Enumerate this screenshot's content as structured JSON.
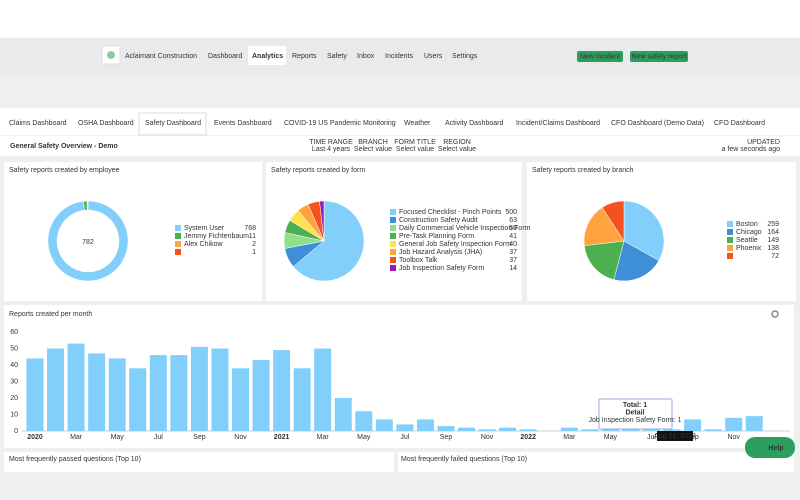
{
  "header": {
    "company": "Aclaimant Construction",
    "nav": [
      "Dashboard",
      "Analytics",
      "Reports",
      "Safety",
      "Inbox",
      "Incidents",
      "Users",
      "Settings"
    ],
    "active_nav": 1,
    "buttons": [
      "New incident",
      "New safety report"
    ]
  },
  "tabs": [
    "Claims Dashboard",
    "OSHA Dashboard",
    "Safety Dashboard",
    "Events Dashboard",
    "COVID-19 US Pandemic Monitoring",
    "Weather",
    "Activity Dashboard",
    "Incident/Claims Dashboard",
    "CFO Dashboard (Demo Data)",
    "CFO Dashboard"
  ],
  "active_tab": 2,
  "page_title": "General Safety Overview - Demo",
  "filters": [
    {
      "label": "TIME RANGE",
      "value": "Last 4 years"
    },
    {
      "label": "BRANCH",
      "value": "Select value"
    },
    {
      "label": "FORM TITLE",
      "value": "Select value"
    },
    {
      "label": "REGION",
      "value": "Select value"
    }
  ],
  "updated": {
    "label": "UPDATED",
    "value": "a few seconds ago"
  },
  "chart_data": [
    {
      "type": "donut",
      "title": "Safety reports created by employee",
      "total": 782,
      "categories": [
        "System User",
        "Jemmy Fichtenbaum",
        "Alex Chikow",
        null
      ],
      "values": [
        768,
        11,
        2,
        1
      ],
      "colors": [
        "#81cffa",
        "#4caf50",
        "#ffa23f",
        "#f4511e"
      ]
    },
    {
      "type": "pie",
      "title": "Safety reports created by form",
      "categories": [
        "Focused Checklist - Pinch Points",
        "Construction Safety Audit",
        "Daily Commercial Vehicle Inspection Form",
        "Pre-Task Planning Form",
        "General Job Safety Inspection Form",
        "Job Hazard Analysis (JHA)",
        "Toolbox Talk",
        "Job Inspection Safety Form"
      ],
      "values": [
        500,
        63,
        50,
        41,
        40,
        37,
        37,
        14
      ],
      "colors": [
        "#81cffa",
        "#3f8fd8",
        "#8ee08a",
        "#4caf50",
        "#ffe14f",
        "#ffa23f",
        "#f4511e",
        "#9c1ab1"
      ]
    },
    {
      "type": "pie",
      "title": "Safety reports created by branch",
      "categories": [
        "Boston",
        "Chicago",
        "Seattle",
        "Phoenix",
        null
      ],
      "values": [
        259,
        164,
        149,
        138,
        72
      ],
      "colors": [
        "#81cffa",
        "#3f8fd8",
        "#4caf50",
        "#ffa23f",
        "#f4511e"
      ]
    },
    {
      "type": "bar",
      "title": "Reports created per month",
      "categories": [
        "2020",
        null,
        "Mar",
        null,
        "May",
        null,
        "Jul",
        null,
        "Sep",
        null,
        "Nov",
        null,
        "2021",
        null,
        "Mar",
        null,
        "May",
        null,
        "Jul",
        null,
        "Sep",
        null,
        "Nov",
        null,
        "2022",
        null,
        "Mar",
        null,
        "May",
        null,
        "Jul",
        null,
        "Sep",
        null,
        "Nov",
        null
      ],
      "values": [
        44,
        50,
        53,
        47,
        44,
        38,
        46,
        46,
        51,
        50,
        38,
        43,
        49,
        38,
        50,
        20,
        12,
        7,
        4,
        7,
        3,
        2,
        1,
        2,
        1,
        0,
        2,
        1,
        3,
        3,
        4,
        1,
        7,
        1,
        8,
        9
      ],
      "color": "#81cffa",
      "ylim": [
        0,
        60
      ],
      "yticks": [
        0,
        10,
        20,
        30,
        40,
        50,
        60
      ],
      "grid": false
    }
  ],
  "tooltip": {
    "lines": [
      "Total: 1",
      "Detail",
      "Job Inspection Safety Form: 1"
    ],
    "date": "Aug 01, 2022"
  },
  "bottom_panels": [
    "Most frequently passed questions (Top 10)",
    "Most frequently failed questions (Top 10)"
  ],
  "help": "Help"
}
